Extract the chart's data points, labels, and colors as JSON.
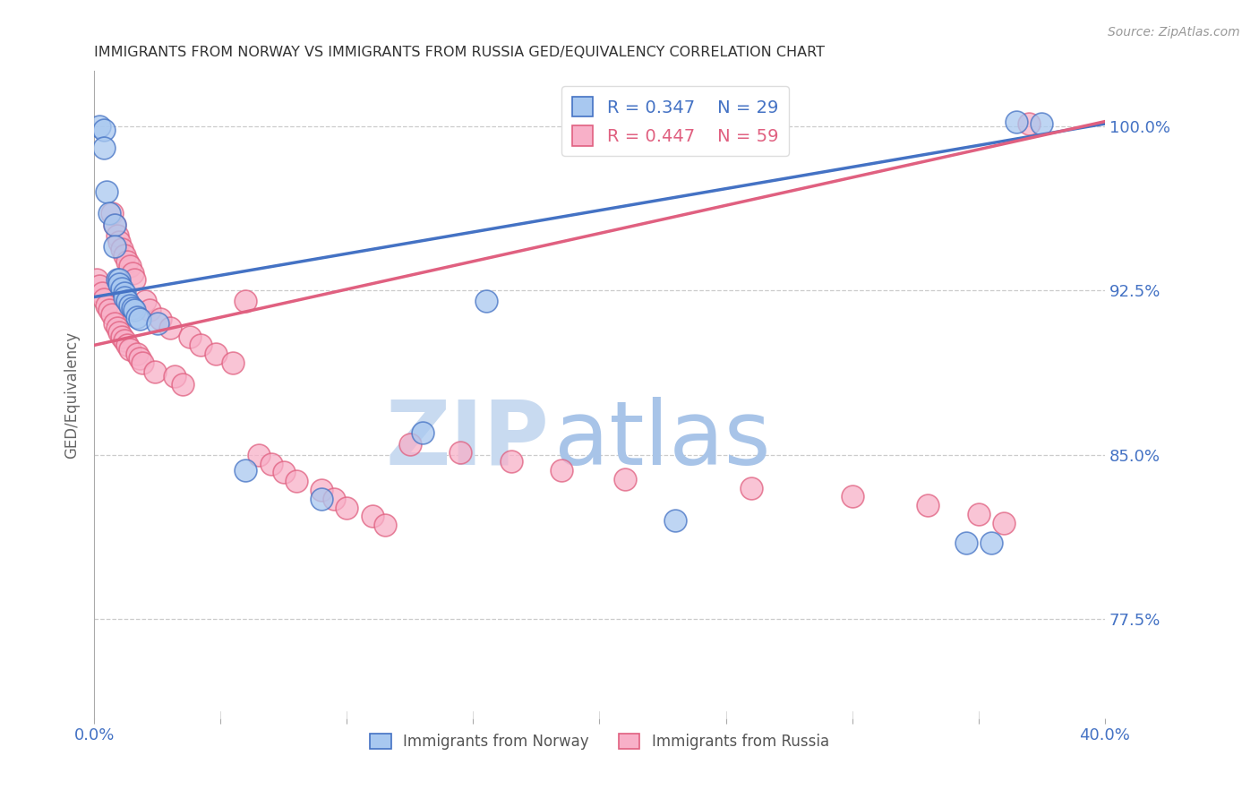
{
  "title": "IMMIGRANTS FROM NORWAY VS IMMIGRANTS FROM RUSSIA GED/EQUIVALENCY CORRELATION CHART",
  "source": "Source: ZipAtlas.com",
  "ylabel": "GED/Equivalency",
  "xlim": [
    0.0,
    0.4
  ],
  "ylim": [
    0.73,
    1.025
  ],
  "yticks": [
    0.775,
    0.85,
    0.925,
    1.0
  ],
  "yticklabels": [
    "77.5%",
    "85.0%",
    "92.5%",
    "100.0%"
  ],
  "norway_R": 0.347,
  "norway_N": 29,
  "russia_R": 0.447,
  "russia_N": 59,
  "norway_color": "#a8c8f0",
  "russia_color": "#f8b0c8",
  "norway_line_color": "#4472c4",
  "russia_line_color": "#e06080",
  "background_color": "#ffffff",
  "grid_color": "#cccccc",
  "norway_line_x0": 0.0,
  "norway_line_y0": 0.922,
  "norway_line_x1": 0.4,
  "norway_line_y1": 1.001,
  "russia_line_x0": 0.0,
  "russia_line_y0": 0.9,
  "russia_line_x1": 0.4,
  "russia_line_y1": 1.002,
  "norway_x": [
    0.002,
    0.004,
    0.004,
    0.005,
    0.006,
    0.008,
    0.008,
    0.009,
    0.01,
    0.01,
    0.011,
    0.012,
    0.012,
    0.013,
    0.014,
    0.015,
    0.016,
    0.017,
    0.018,
    0.025,
    0.06,
    0.09,
    0.13,
    0.155,
    0.23,
    0.345,
    0.355,
    0.365,
    0.375
  ],
  "norway_y": [
    1.0,
    0.998,
    0.99,
    0.97,
    0.96,
    0.955,
    0.945,
    0.93,
    0.93,
    0.928,
    0.926,
    0.924,
    0.922,
    0.92,
    0.918,
    0.917,
    0.916,
    0.913,
    0.912,
    0.91,
    0.843,
    0.83,
    0.86,
    0.92,
    0.82,
    0.81,
    0.81,
    1.002,
    1.001
  ],
  "russia_x": [
    0.001,
    0.002,
    0.003,
    0.004,
    0.005,
    0.006,
    0.007,
    0.007,
    0.008,
    0.008,
    0.009,
    0.009,
    0.01,
    0.01,
    0.011,
    0.011,
    0.012,
    0.012,
    0.013,
    0.013,
    0.014,
    0.014,
    0.015,
    0.016,
    0.017,
    0.018,
    0.019,
    0.02,
    0.022,
    0.024,
    0.026,
    0.03,
    0.032,
    0.035,
    0.038,
    0.042,
    0.048,
    0.055,
    0.06,
    0.065,
    0.07,
    0.075,
    0.08,
    0.09,
    0.095,
    0.1,
    0.11,
    0.115,
    0.125,
    0.145,
    0.165,
    0.185,
    0.21,
    0.26,
    0.3,
    0.33,
    0.35,
    0.36,
    0.37
  ],
  "russia_y": [
    0.93,
    0.927,
    0.924,
    0.921,
    0.918,
    0.916,
    0.914,
    0.96,
    0.91,
    0.955,
    0.908,
    0.95,
    0.906,
    0.947,
    0.904,
    0.944,
    0.941,
    0.902,
    0.938,
    0.9,
    0.936,
    0.898,
    0.933,
    0.93,
    0.896,
    0.894,
    0.892,
    0.92,
    0.916,
    0.888,
    0.912,
    0.908,
    0.886,
    0.882,
    0.904,
    0.9,
    0.896,
    0.892,
    0.92,
    0.85,
    0.846,
    0.842,
    0.838,
    0.834,
    0.83,
    0.826,
    0.822,
    0.818,
    0.855,
    0.851,
    0.847,
    0.843,
    0.839,
    0.835,
    0.831,
    0.827,
    0.823,
    0.819,
    1.001
  ],
  "watermark_zip": "ZIP",
  "watermark_atlas": "atlas"
}
